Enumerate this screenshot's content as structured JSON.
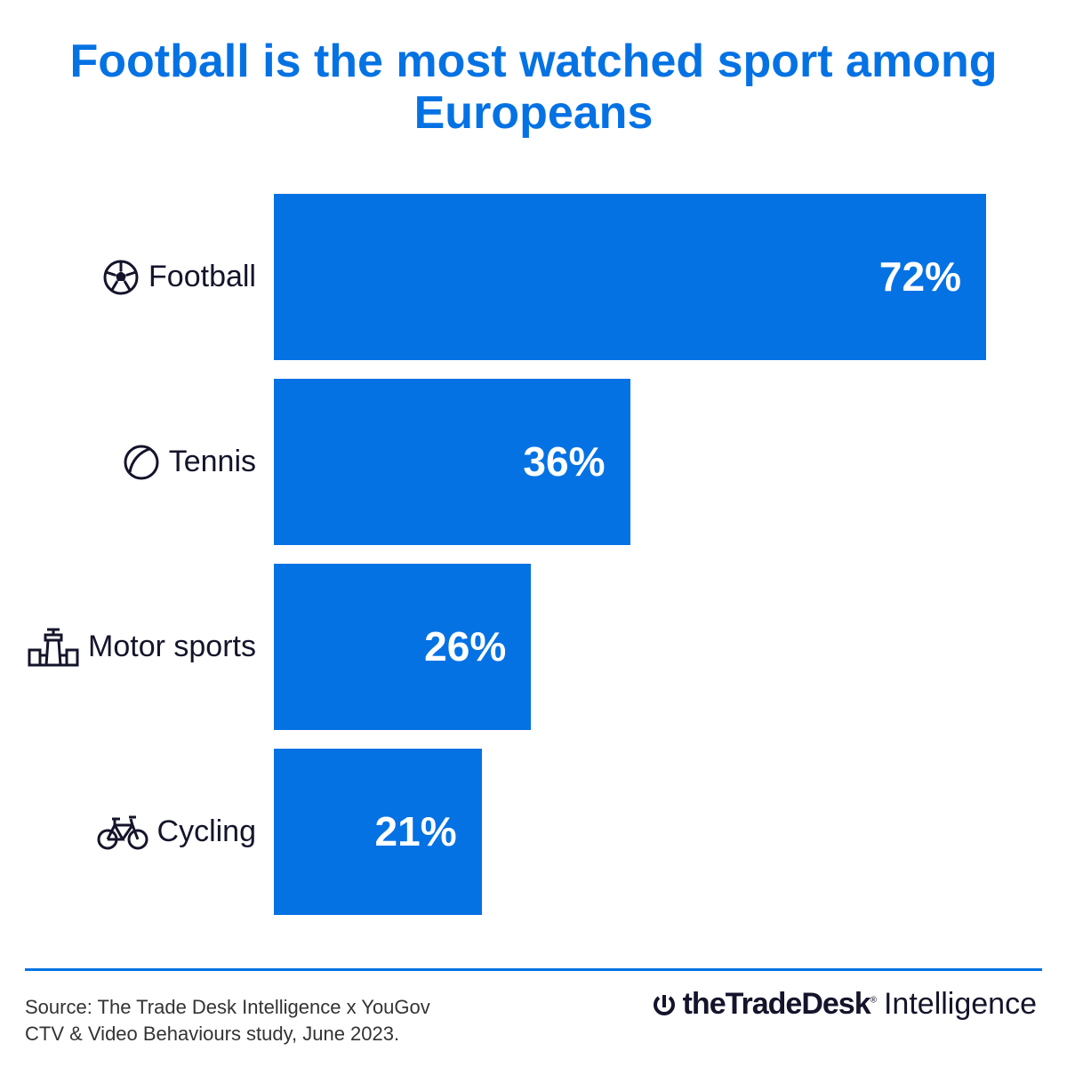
{
  "title": "Football is the most watched sport among Europeans",
  "chart_data": {
    "type": "bar",
    "orientation": "horizontal",
    "title": "Football is the most watched sport among Europeans",
    "categories": [
      "Football",
      "Tennis",
      "Motor sports",
      "Cycling"
    ],
    "values": [
      72,
      36,
      26,
      21
    ],
    "value_labels": [
      "72%",
      "36%",
      "26%",
      "21%"
    ],
    "icons": [
      "football-icon",
      "tennis-ball-icon",
      "race-car-icon",
      "bicycle-icon"
    ],
    "xlabel": "",
    "ylabel": "",
    "xlim": [
      0,
      72
    ],
    "grid": false,
    "bar_color": "#0572e4"
  },
  "footer": {
    "source_line1": "Source: The Trade Desk Intelligence x YouGov",
    "source_line2": "CTV & Video Behaviours study, June 2023.",
    "logo_brand": "theTradeDesk",
    "logo_mark": "®",
    "logo_suffix": "Intelligence"
  }
}
